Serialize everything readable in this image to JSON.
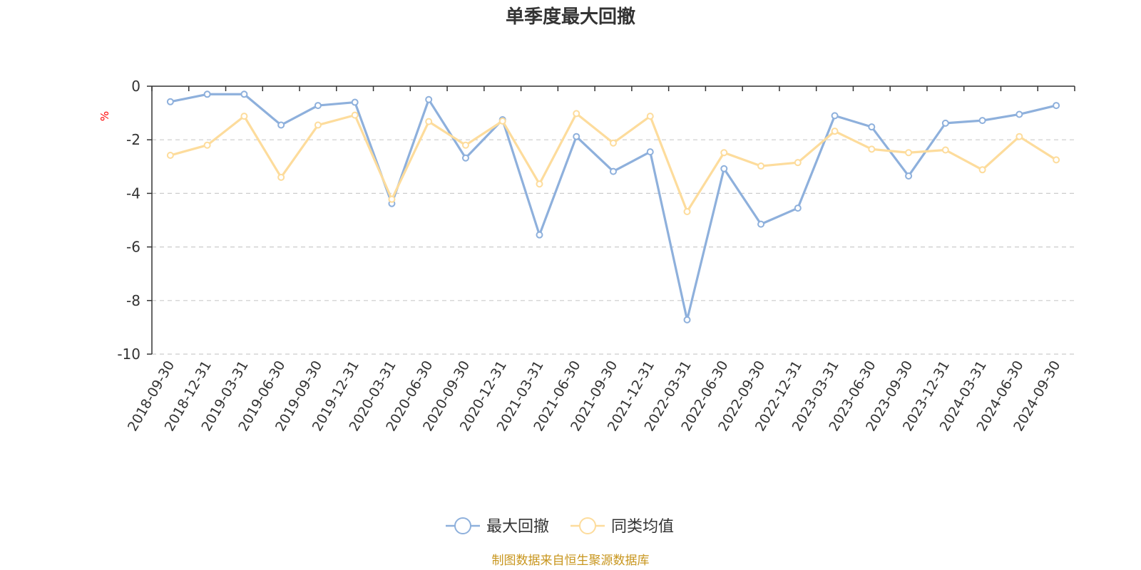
{
  "chart_data": {
    "type": "line",
    "title": "单季度最大回撤",
    "ylabel": "%",
    "xlabel": "",
    "ylim": [
      -10,
      0
    ],
    "yticks": [
      0,
      -2,
      -4,
      -6,
      -8,
      -10
    ],
    "grid": true,
    "legend_position": "bottom-center",
    "categories": [
      "2018-09-30",
      "2018-12-31",
      "2019-03-31",
      "2019-06-30",
      "2019-09-30",
      "2019-12-31",
      "2020-03-31",
      "2020-06-30",
      "2020-09-30",
      "2020-12-31",
      "2021-03-31",
      "2021-06-30",
      "2021-09-30",
      "2021-12-31",
      "2022-03-31",
      "2022-06-30",
      "2022-09-30",
      "2022-12-31",
      "2023-03-31",
      "2023-06-30",
      "2023-09-30",
      "2023-12-31",
      "2024-03-31",
      "2024-06-30",
      "2024-09-30"
    ],
    "series": [
      {
        "name": "最大回撤",
        "color": "#8eb0dc",
        "values": [
          -0.58,
          -0.3,
          -0.3,
          -1.45,
          -0.72,
          -0.6,
          -4.38,
          -0.5,
          -2.68,
          -1.25,
          -5.55,
          -1.88,
          -3.18,
          -2.45,
          -8.72,
          -3.08,
          -5.15,
          -4.55,
          -1.1,
          -1.52,
          -3.35,
          -1.38,
          -1.28,
          -1.05,
          -0.72
        ]
      },
      {
        "name": "同类均值",
        "color": "#fddc9c",
        "values": [
          -2.58,
          -2.2,
          -1.12,
          -3.4,
          -1.45,
          -1.08,
          -4.22,
          -1.32,
          -2.2,
          -1.3,
          -3.65,
          -1.02,
          -2.12,
          -1.12,
          -4.68,
          -2.48,
          -2.98,
          -2.85,
          -1.68,
          -2.35,
          -2.48,
          -2.38,
          -3.12,
          -1.88,
          -2.75
        ]
      }
    ]
  },
  "source_note": "制图数据来自恒生聚源数据库"
}
